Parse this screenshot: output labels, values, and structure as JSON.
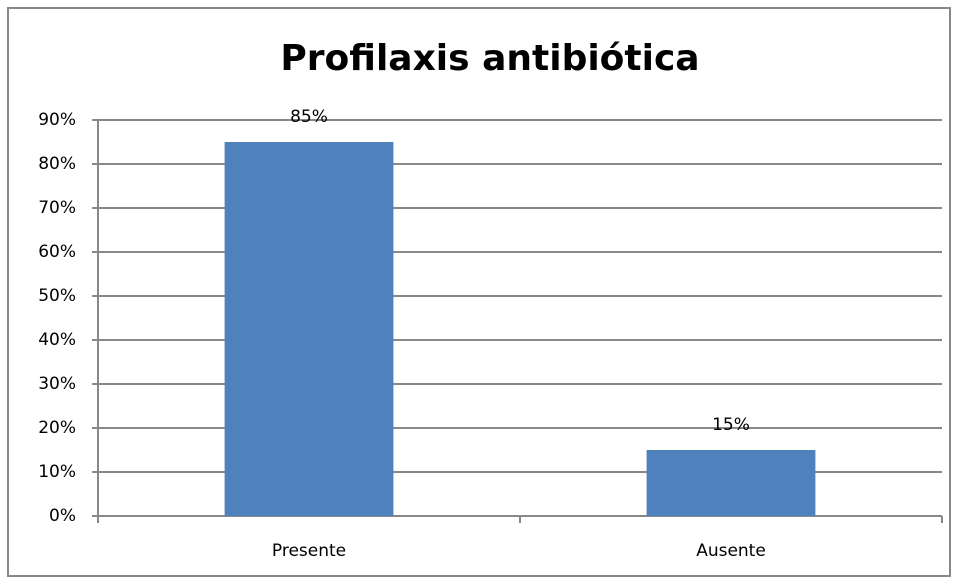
{
  "chart_data": {
    "type": "bar",
    "title": "Profilaxis antibiótica",
    "categories": [
      "Presente",
      "Ausente"
    ],
    "values": [
      85,
      15
    ],
    "value_labels": [
      "85%",
      "15%"
    ],
    "color": "#4f81bd",
    "ylim": [
      0,
      90
    ],
    "yticks": [
      {
        "value": 0,
        "label": "0%"
      },
      {
        "value": 10,
        "label": "10%"
      },
      {
        "value": 20,
        "label": "20%"
      },
      {
        "value": 30,
        "label": "30%"
      },
      {
        "value": 40,
        "label": "40%"
      },
      {
        "value": 50,
        "label": "50%"
      },
      {
        "value": 60,
        "label": "60%"
      },
      {
        "value": 70,
        "label": "70%"
      },
      {
        "value": 80,
        "label": "80%"
      },
      {
        "value": 90,
        "label": "90%"
      }
    ],
    "grid": true
  }
}
